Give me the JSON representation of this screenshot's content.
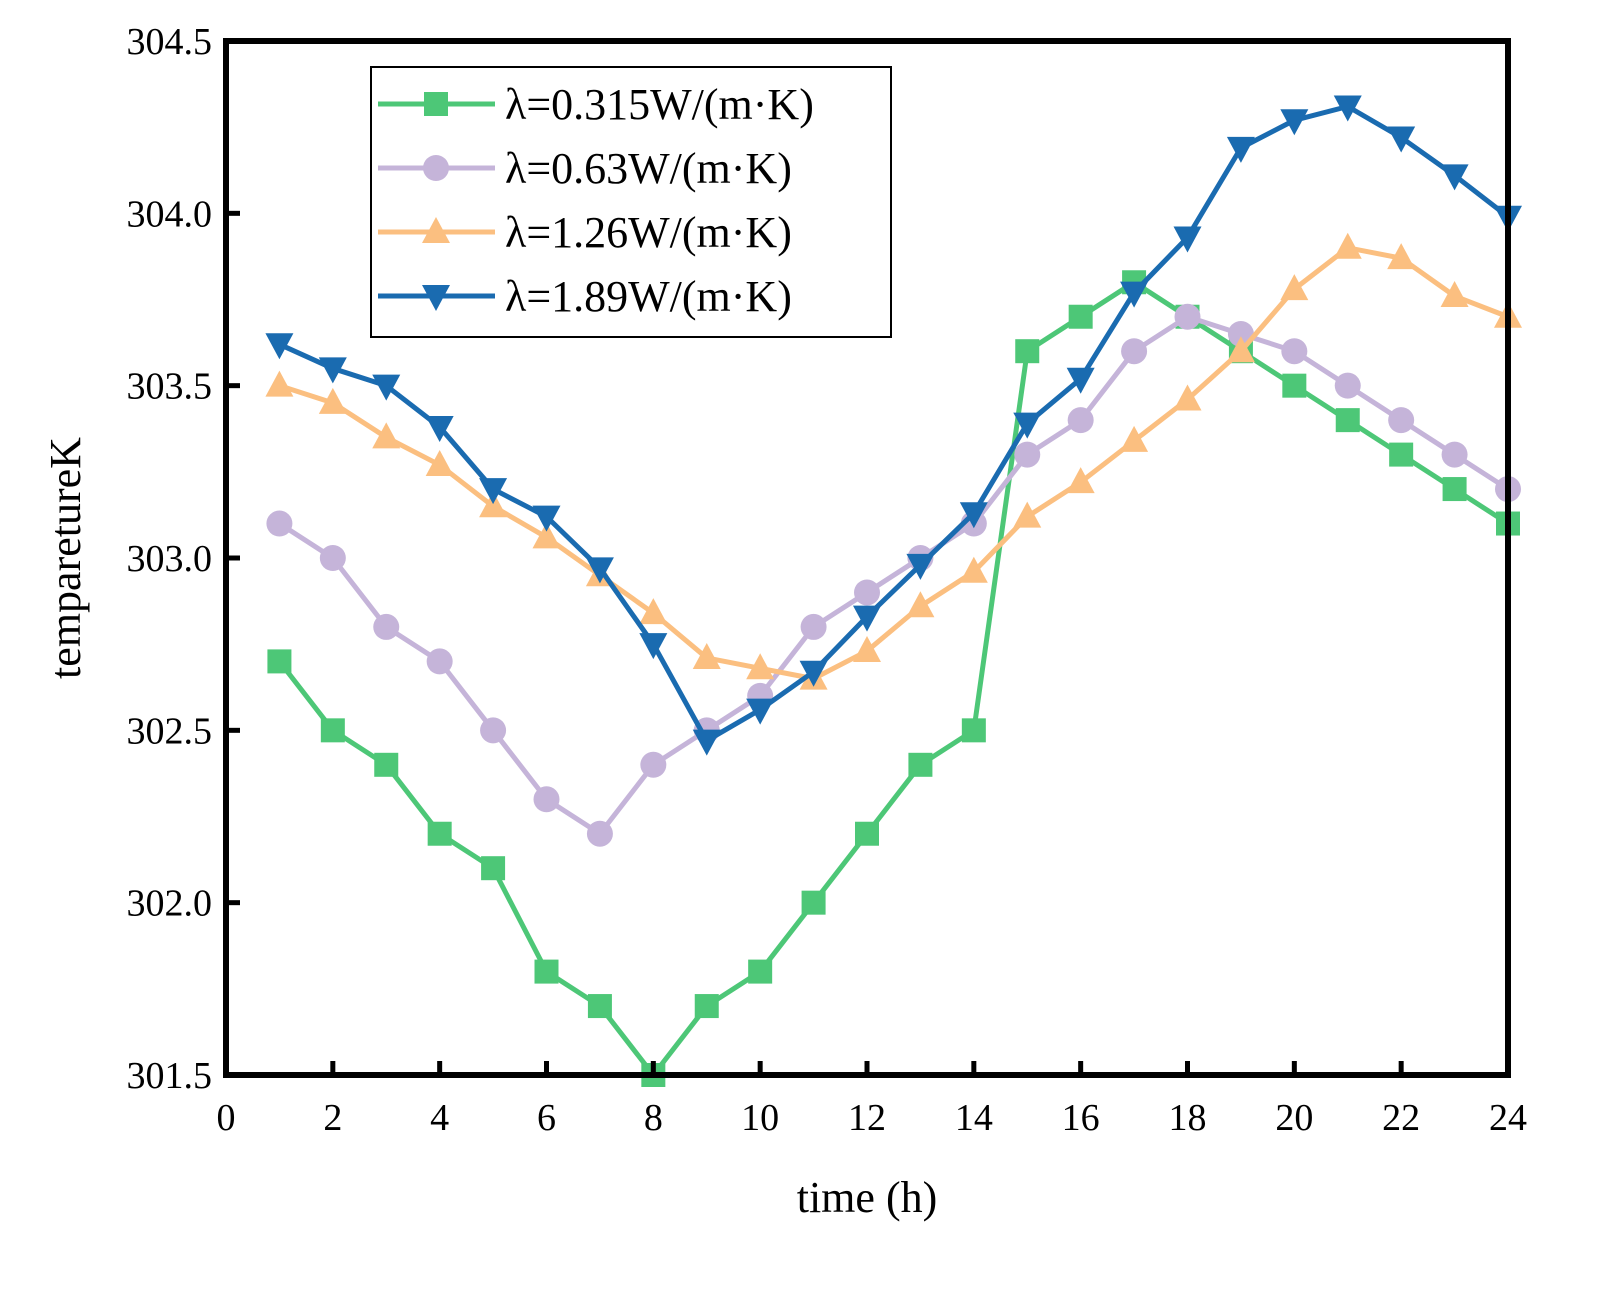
{
  "chart_data": {
    "type": "line",
    "title": "",
    "xlabel": "time (h)",
    "ylabel": "temparetureK",
    "xlim": [
      0,
      24
    ],
    "ylim": [
      301.5,
      304.5
    ],
    "x_ticks": [
      "0",
      "2",
      "4",
      "6",
      "8",
      "10",
      "12",
      "14",
      "16",
      "18",
      "20",
      "22",
      "24"
    ],
    "y_ticks": [
      "301.5",
      "302.0",
      "302.5",
      "303.0",
      "303.5",
      "304.0",
      "304.5"
    ],
    "grid": false,
    "legend_position": "top-left",
    "x": [
      1,
      2,
      3,
      4,
      5,
      6,
      7,
      8,
      9,
      10,
      11,
      12,
      13,
      14,
      15,
      16,
      17,
      18,
      19,
      20,
      21,
      22,
      23,
      24
    ],
    "series": [
      {
        "name": "λ=0.315W/(m·K)",
        "color": "#4dc777",
        "marker": "square",
        "values": [
          302.7,
          302.5,
          302.4,
          302.2,
          302.1,
          301.8,
          301.7,
          301.5,
          301.7,
          301.8,
          302.0,
          302.2,
          302.4,
          302.5,
          303.6,
          303.7,
          303.8,
          303.7,
          303.6,
          303.5,
          303.4,
          303.3,
          303.2,
          303.1
        ]
      },
      {
        "name": "λ=0.63W/(m·K)",
        "color": "#c5b4d9",
        "marker": "circle",
        "values": [
          303.1,
          303.0,
          302.8,
          302.7,
          302.5,
          302.3,
          302.2,
          302.4,
          302.5,
          302.6,
          302.8,
          302.9,
          303.0,
          303.1,
          303.3,
          303.4,
          303.6,
          303.7,
          303.65,
          303.6,
          303.5,
          303.4,
          303.3,
          303.2
        ]
      },
      {
        "name": "λ=1.26W/(m·K)",
        "color": "#fbbf80",
        "marker": "triangle-up",
        "values": [
          303.5,
          303.45,
          303.35,
          303.27,
          303.15,
          303.06,
          302.95,
          302.84,
          302.71,
          302.68,
          302.65,
          302.73,
          302.86,
          302.96,
          303.12,
          303.22,
          303.34,
          303.46,
          303.6,
          303.78,
          303.9,
          303.87,
          303.76,
          303.7
        ]
      },
      {
        "name": "λ=1.89W/(m·K)",
        "color": "#1a6bb0",
        "marker": "triangle-down",
        "values": [
          303.62,
          303.55,
          303.5,
          303.38,
          303.2,
          303.12,
          302.97,
          302.75,
          302.47,
          302.56,
          302.67,
          302.83,
          302.98,
          303.13,
          303.39,
          303.52,
          303.77,
          303.93,
          304.19,
          304.27,
          304.31,
          304.22,
          304.11,
          303.99
        ]
      }
    ]
  }
}
